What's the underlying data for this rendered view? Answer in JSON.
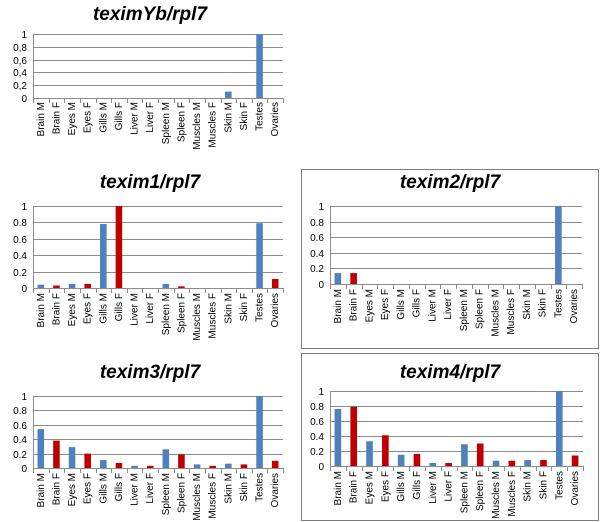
{
  "chart_data": [
    {
      "type": "bar",
      "title": "teximYb/rpl7",
      "categories": [
        "Brain M",
        "Brain F",
        "Eyes M",
        "Eyes F",
        "Gills M",
        "Gills F",
        "Liver M",
        "Liver F",
        "Spleen M",
        "Spleen F",
        "Muscles M",
        "Muscles F",
        "Skin M",
        "Skin F",
        "Testes",
        "Ovaries"
      ],
      "values": [
        0,
        0,
        0,
        0,
        0,
        0,
        0,
        0,
        0,
        0,
        0,
        0,
        0.1,
        0,
        1.0,
        0
      ],
      "yticks": [
        "0",
        "0,2",
        "0,4",
        "0,6",
        "0,8",
        "1"
      ],
      "ylim": [
        0,
        1
      ],
      "grid": true,
      "colors": {
        "male": "#4f81bd",
        "female": "#c00000"
      }
    },
    {
      "type": "bar",
      "title": "texim1/rpl7",
      "categories": [
        "Brain M",
        "Brain F",
        "Eyes M",
        "Eyes F",
        "Gills M",
        "Gills F",
        "Liver M",
        "Liver F",
        "Spleen M",
        "Spleen F",
        "Muscles M",
        "Muscles F",
        "Skin M",
        "Skin F",
        "Testes",
        "Ovaries"
      ],
      "values": [
        0.04,
        0.03,
        0.05,
        0.05,
        0.78,
        1.0,
        0,
        0,
        0.05,
        0.02,
        0,
        0,
        0,
        0,
        0.79,
        0.11
      ],
      "yticks": [
        "0",
        "0.2",
        "0.4",
        "0.6",
        "0.8",
        "1"
      ],
      "ylim": [
        0,
        1
      ],
      "grid": true,
      "colors": {
        "male": "#4f81bd",
        "female": "#c00000"
      }
    },
    {
      "type": "bar",
      "title": "texim2/rpl7",
      "categories": [
        "Brain M",
        "Brain F",
        "Eyes M",
        "Eyes F",
        "Gills M",
        "Gills F",
        "Liver M",
        "Liver F",
        "Spleen M",
        "Spleen F",
        "Muscles M",
        "Muscles F",
        "Skin M",
        "Skin F",
        "Testes",
        "Ovaries"
      ],
      "values": [
        0.14,
        0.14,
        0,
        0,
        0,
        0,
        0,
        0,
        0,
        0,
        0,
        0,
        0,
        0,
        1.0,
        0
      ],
      "yticks": [
        "0",
        "0.2",
        "0.4",
        "0.6",
        "0.8",
        "1"
      ],
      "ylim": [
        0,
        1
      ],
      "grid": true,
      "colors": {
        "male": "#4f81bd",
        "female": "#c00000"
      }
    },
    {
      "type": "bar",
      "title": "texim3/rpl7",
      "categories": [
        "Brain M",
        "Brain F",
        "Eyes M",
        "Eyes F",
        "Gills M",
        "Gills F",
        "Liver M",
        "Liver F",
        "Spleen M",
        "Spleen F",
        "Muscles M",
        "Muscles F",
        "Skin M",
        "Skin F",
        "Testes",
        "Ovaries"
      ],
      "values": [
        0.54,
        0.38,
        0.29,
        0.2,
        0.11,
        0.07,
        0.03,
        0.03,
        0.26,
        0.19,
        0.05,
        0.03,
        0.06,
        0.05,
        1.0,
        0.1
      ],
      "yticks": [
        "0",
        "0.2",
        "0.4",
        "0.6",
        "0.8",
        "1"
      ],
      "ylim": [
        0,
        1
      ],
      "grid": true,
      "colors": {
        "male": "#4f81bd",
        "female": "#c00000"
      }
    },
    {
      "type": "bar",
      "title": "texim4/rpl7",
      "categories": [
        "Brain M",
        "Brain F",
        "Eyes M",
        "Eyes F",
        "Gills M",
        "Gills F",
        "Liver M",
        "Liver F",
        "Spleen M",
        "Spleen F",
        "Muscles M",
        "Muscles F",
        "Skin M",
        "Skin F",
        "Testes",
        "Ovaries"
      ],
      "values": [
        0.76,
        0.79,
        0.33,
        0.41,
        0.15,
        0.16,
        0.04,
        0.04,
        0.29,
        0.3,
        0.07,
        0.07,
        0.08,
        0.08,
        1.0,
        0.14
      ],
      "yticks": [
        "0",
        "0.2",
        "0.4",
        "0.6",
        "0.8",
        "1"
      ],
      "ylim": [
        0,
        1
      ],
      "grid": true,
      "colors": {
        "male": "#4f81bd",
        "female": "#c00000"
      }
    }
  ]
}
